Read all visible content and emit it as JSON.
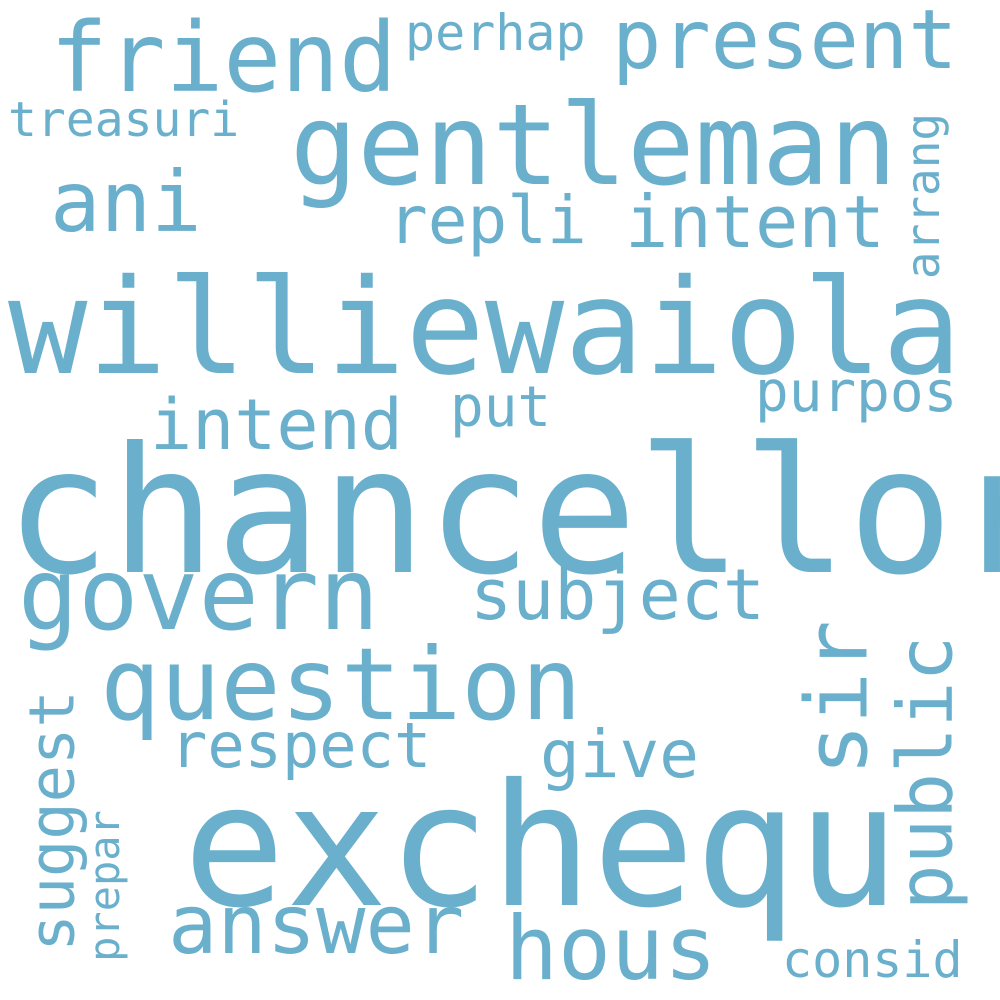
{
  "word_cloud": {
    "color": "#6ab0cc",
    "background": "#ffffff",
    "words": [
      {
        "text": "chancellor"
      },
      {
        "text": "exchequ"
      },
      {
        "text": "williewaiola"
      },
      {
        "text": "gentleman"
      },
      {
        "text": "friend"
      },
      {
        "text": "present"
      },
      {
        "text": "govern"
      },
      {
        "text": "question"
      },
      {
        "text": "answer"
      },
      {
        "text": "hous"
      },
      {
        "text": "sir"
      },
      {
        "text": "public"
      },
      {
        "text": "intend"
      },
      {
        "text": "ani"
      },
      {
        "text": "intent"
      },
      {
        "text": "repli"
      },
      {
        "text": "subject"
      },
      {
        "text": "respect"
      },
      {
        "text": "give"
      },
      {
        "text": "suggest"
      },
      {
        "text": "purpos"
      },
      {
        "text": "perhap"
      },
      {
        "text": "treasuri"
      },
      {
        "text": "put"
      },
      {
        "text": "arrang"
      },
      {
        "text": "prepar"
      },
      {
        "text": "consid"
      }
    ]
  }
}
